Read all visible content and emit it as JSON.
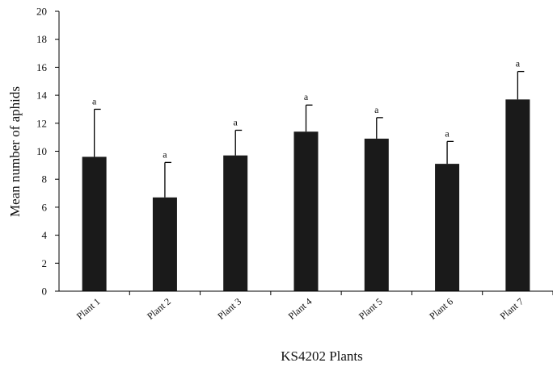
{
  "chart_data": {
    "type": "bar",
    "title": "",
    "xlabel": "KS4202 Plants",
    "ylabel": "Mean number of aphids",
    "ylim": [
      0,
      20
    ],
    "yticks": [
      0,
      2,
      4,
      6,
      8,
      10,
      12,
      14,
      16,
      18,
      20
    ],
    "grid": false,
    "legend": "none",
    "categories": [
      "Plant 1",
      "Plant 2",
      "Plant 3",
      "Plant 4",
      "Plant 5",
      "Plant 6",
      "Plant 7"
    ],
    "values": [
      9.6,
      6.7,
      9.7,
      11.4,
      10.9,
      9.1,
      13.7
    ],
    "error_upper": [
      3.4,
      2.5,
      1.8,
      1.9,
      1.5,
      1.6,
      2.0
    ],
    "significance_labels": [
      "a",
      "a",
      "a",
      "a",
      "a",
      "a",
      "a"
    ],
    "colors": {
      "bar": "#1a1a1a",
      "axis": "#000000"
    }
  }
}
